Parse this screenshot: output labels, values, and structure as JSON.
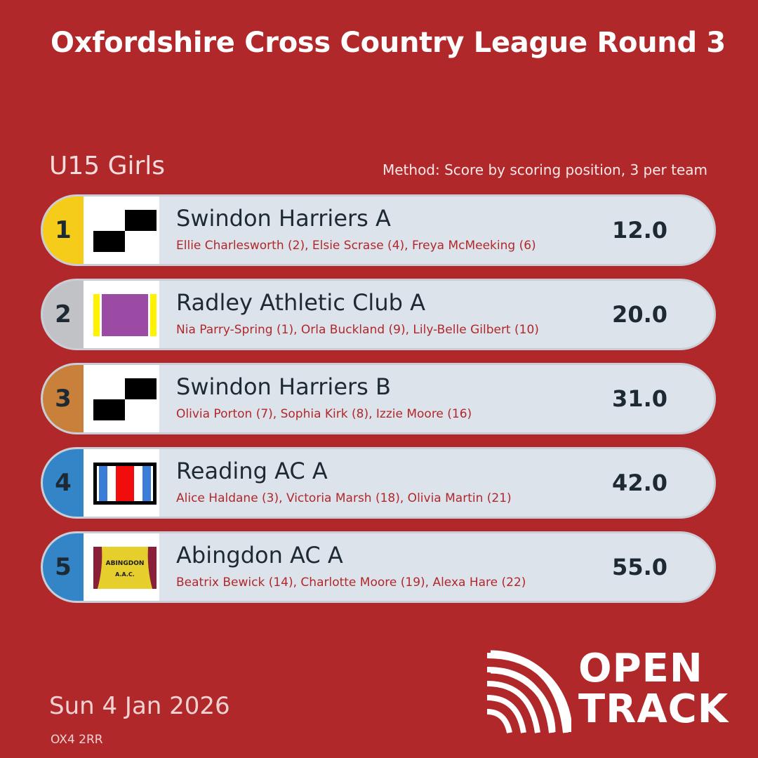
{
  "header": {
    "title": "Oxfordshire Cross Country League Round 3",
    "category": "U15 Girls",
    "method": "Method: Score by scoring position, 3 per team"
  },
  "colors": {
    "background": "#b1282b",
    "gold": "#f5cc19",
    "silver": "#c0c2c5",
    "bronze": "#c9803a",
    "blue": "#3485c7"
  },
  "results": [
    {
      "pos": "1",
      "team": "Swindon Harriers A",
      "members": "Ellie Charlesworth (2), Elsie Scrase (4), Freya McMeeking (6)",
      "score": "12.0",
      "logo": "black-white-checker-icon"
    },
    {
      "pos": "2",
      "team": "Radley Athletic Club A",
      "members": "Nia Parry-Spring (1), Orla Buckland (9), Lily-Belle Gilbert (10)",
      "score": "20.0",
      "logo": "purple-yellow-vest-icon"
    },
    {
      "pos": "3",
      "team": "Swindon Harriers B",
      "members": "Olivia Porton (7), Sophia Kirk (8), Izzie Moore (16)",
      "score": "31.0",
      "logo": "black-white-checker-icon"
    },
    {
      "pos": "4",
      "team": "Reading AC A",
      "members": "Alice Haldane (3), Victoria Marsh (18), Olivia Martin (21)",
      "score": "42.0",
      "logo": "blue-white-red-stripes-icon"
    },
    {
      "pos": "5",
      "team": "Abingdon AC A",
      "members": "Beatrix Bewick (14), Charlotte Moore (19), Alexa Hare (22)",
      "score": "55.0",
      "logo": "abingdon-yellow-vest-icon"
    }
  ],
  "abingdon_logo_text": {
    "line1": "ABINGDON",
    "line2": "A.A.C."
  },
  "footer": {
    "date": "Sun 4 Jan 2026",
    "postcode": "OX4 2RR",
    "brand_line1": "OPEN",
    "brand_line2": "TRACK"
  }
}
